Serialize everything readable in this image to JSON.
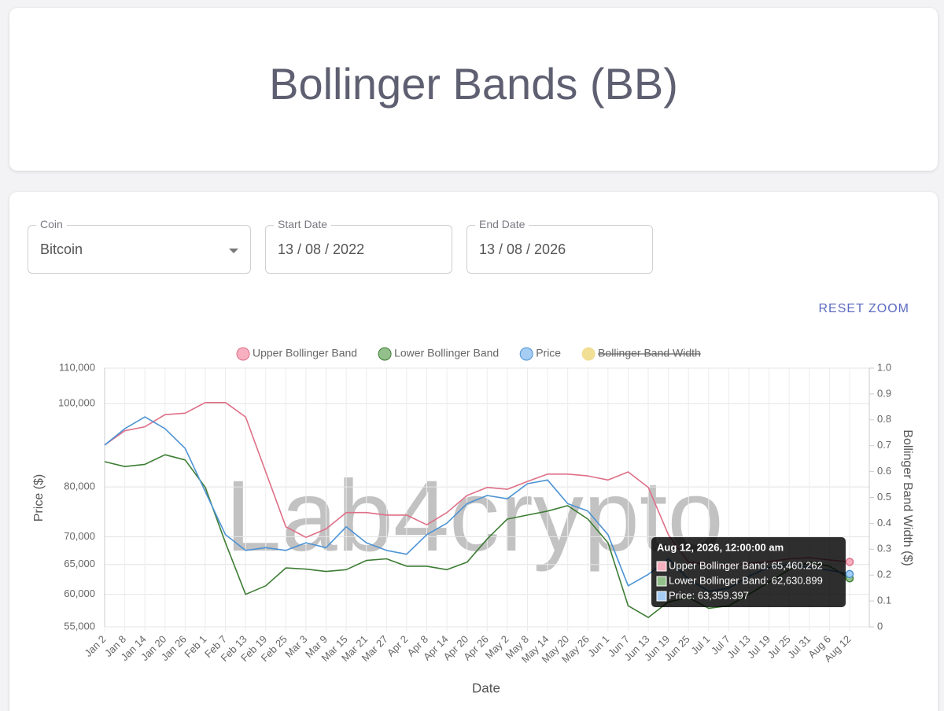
{
  "header": {
    "title": "Bollinger Bands (BB)"
  },
  "form": {
    "coin": {
      "label": "Coin",
      "value": "Bitcoin"
    },
    "start_date": {
      "label": "Start Date",
      "value": "13 / 08 / 2022"
    },
    "end_date": {
      "label": "End Date",
      "value": "13 / 08 / 2026"
    },
    "reset_zoom": "RESET ZOOM"
  },
  "watermark": "Lab4crypto",
  "tooltip": {
    "title": "Aug 12, 2026, 12:00:00 am",
    "lines": [
      "Upper Bollinger Band: 65,460.262",
      "Lower Bollinger Band: 62,630.899",
      "Price: 63,359.397"
    ]
  },
  "chart_data": {
    "type": "line",
    "x_label": "Date",
    "y_label": "Price ($)",
    "y2_label": "Bollinger Band Width ($)",
    "log_y": true,
    "grid": true,
    "legend": "top",
    "categories": [
      "Jan 2",
      "Jan 8",
      "Jan 14",
      "Jan 20",
      "Jan 26",
      "Feb 1",
      "Feb 7",
      "Feb 13",
      "Feb 19",
      "Feb 25",
      "Mar 3",
      "Mar 9",
      "Mar 15",
      "Mar 21",
      "Mar 27",
      "Apr 2",
      "Apr 8",
      "Apr 14",
      "Apr 20",
      "Apr 26",
      "May 2",
      "May 8",
      "May 14",
      "May 20",
      "May 26",
      "Jun 1",
      "Jun 7",
      "Jun 13",
      "Jun 19",
      "Jun 25",
      "Jul 1",
      "Jul 7",
      "Jul 13",
      "Jul 19",
      "Jul 25",
      "Jul 31",
      "Aug 6",
      "Aug 12"
    ],
    "series": [
      {
        "name": "Upper Bollinger Band",
        "color": "#de6f87",
        "legend_color": "#f6b0bf",
        "values": [
          89500,
          93000,
          94000,
          97100,
          97500,
          100300,
          100300,
          96500,
          83300,
          71900,
          69900,
          71500,
          74700,
          74700,
          74200,
          74200,
          72300,
          74700,
          78200,
          79900,
          79500,
          81200,
          82800,
          82800,
          82400,
          81500,
          83300,
          79900,
          70400,
          65400,
          65000,
          64800,
          65200,
          65500,
          66000,
          66200,
          65800,
          65460.262
        ]
      },
      {
        "name": "Lower Bollinger Band",
        "color": "#3d7d34",
        "legend_color": "#93c08a",
        "values": [
          85600,
          84500,
          85000,
          87200,
          86000,
          79900,
          68900,
          60000,
          61400,
          64400,
          64200,
          63800,
          64100,
          65700,
          66000,
          64700,
          64700,
          64100,
          65400,
          69600,
          73400,
          74200,
          75000,
          76100,
          73400,
          68900,
          58200,
          56400,
          58800,
          59500,
          57800,
          58200,
          60000,
          62000,
          64100,
          65400,
          64700,
          62630.899
        ]
      },
      {
        "name": "Price",
        "color": "#4d93d4",
        "legend_color": "#a6cdf3",
        "values": [
          89500,
          93500,
          96500,
          93500,
          88700,
          79000,
          70400,
          67500,
          68000,
          67500,
          68900,
          68000,
          71900,
          68900,
          67500,
          66800,
          70400,
          72600,
          76500,
          78200,
          77500,
          80700,
          81500,
          76500,
          75000,
          70400,
          61400,
          63300,
          66000,
          62500,
          60500,
          61000,
          63000,
          64500,
          65000,
          64500,
          64000,
          63359.397
        ]
      },
      {
        "name": "Bollinger Band Width",
        "color": "#f1df95",
        "legend_color": "#f1df95",
        "axis": "y2",
        "hidden": true
      }
    ],
    "ylim": [
      55000,
      110000
    ],
    "yticks": [
      {
        "value": 55000,
        "label": "55,000"
      },
      {
        "value": 60000,
        "label": "60,000"
      },
      {
        "value": 65000,
        "label": "65,000"
      },
      {
        "value": 70000,
        "label": "70,000"
      },
      {
        "value": 80000,
        "label": "80,000"
      },
      {
        "value": 100000,
        "label": "100,000"
      },
      {
        "value": 110000,
        "label": "110,000"
      }
    ],
    "y2lim": [
      0,
      1
    ],
    "y2ticks": [
      0,
      0.1,
      0.2,
      0.3,
      0.4,
      0.5,
      0.6,
      0.7,
      0.8,
      0.9,
      {
        "value": 1,
        "label": "1.0"
      }
    ]
  }
}
